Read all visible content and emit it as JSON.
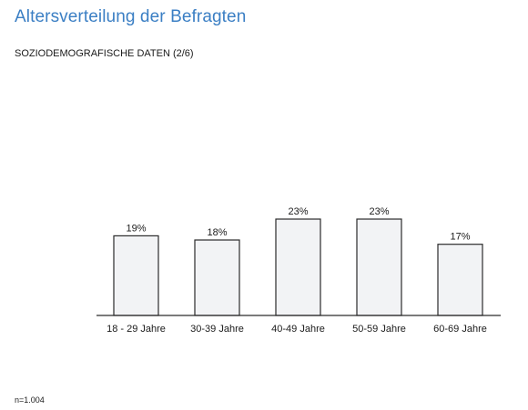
{
  "header": {
    "title": "Altersverteilung der Befragten",
    "subtitle": "SOZIODEMOGRAFISCHE DATEN (2/6)"
  },
  "footnote": "n=1.004",
  "colors": {
    "title": "#3b7fc4",
    "bar_fill": "#f2f3f5",
    "bar_stroke": "#2b2b2b",
    "axis": "#2b2b2b"
  },
  "chart_data": {
    "type": "bar",
    "categories": [
      "18 - 29 Jahre",
      "30-39 Jahre",
      "40-49 Jahre",
      "50-59 Jahre",
      "60-69 Jahre"
    ],
    "values": [
      19,
      18,
      23,
      23,
      17
    ],
    "value_labels": [
      "19%",
      "18%",
      "23%",
      "23%",
      "17%"
    ],
    "unit": "%",
    "ylim": [
      0,
      23
    ],
    "grid": false,
    "legend": "none"
  }
}
